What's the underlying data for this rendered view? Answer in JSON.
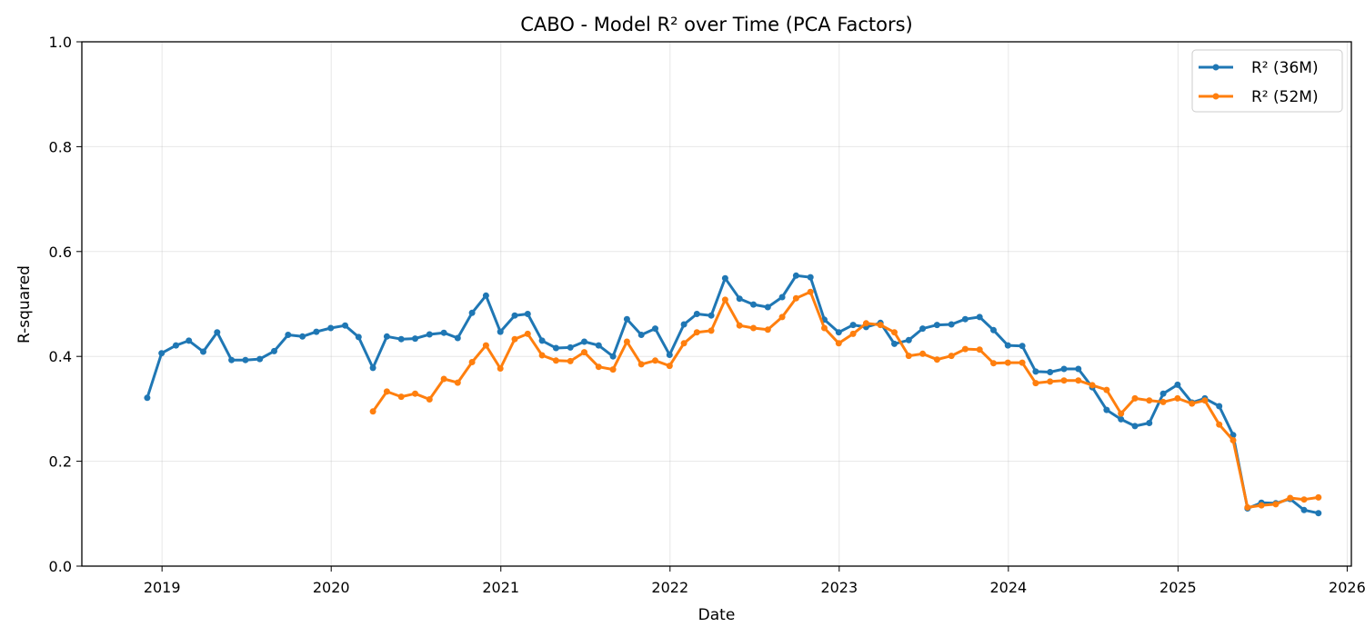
{
  "chart_data": {
    "type": "line",
    "title": "CABO - Model R² over Time (PCA Factors)",
    "xlabel": "Date",
    "ylabel": "R-squared",
    "xlim": [
      "2018-07-12",
      "2026-01-10"
    ],
    "ylim": [
      0,
      1.0
    ],
    "x_ticks": [
      "2019",
      "2020",
      "2021",
      "2022",
      "2023",
      "2024",
      "2025",
      "2026"
    ],
    "y_ticks": [
      "0.0",
      "0.2",
      "0.4",
      "0.6",
      "0.8",
      "1.0"
    ],
    "grid": true,
    "legend_position": "top-right",
    "series": [
      {
        "name": "R² (36M)",
        "color": "#1f77b4",
        "points": [
          [
            "2018-11-30",
            0.321
          ],
          [
            "2018-12-31",
            0.406
          ],
          [
            "2019-01-31",
            0.421
          ],
          [
            "2019-02-28",
            0.43
          ],
          [
            "2019-03-31",
            0.409
          ],
          [
            "2019-04-30",
            0.446
          ],
          [
            "2019-05-31",
            0.393
          ],
          [
            "2019-06-30",
            0.393
          ],
          [
            "2019-07-31",
            0.395
          ],
          [
            "2019-08-31",
            0.41
          ],
          [
            "2019-09-30",
            0.441
          ],
          [
            "2019-10-31",
            0.438
          ],
          [
            "2019-11-30",
            0.447
          ],
          [
            "2019-12-31",
            0.454
          ],
          [
            "2020-01-31",
            0.459
          ],
          [
            "2020-02-29",
            0.437
          ],
          [
            "2020-03-31",
            0.378
          ],
          [
            "2020-04-30",
            0.438
          ],
          [
            "2020-05-31",
            0.433
          ],
          [
            "2020-06-30",
            0.434
          ],
          [
            "2020-07-31",
            0.442
          ],
          [
            "2020-08-31",
            0.445
          ],
          [
            "2020-09-30",
            0.435
          ],
          [
            "2020-10-31",
            0.483
          ],
          [
            "2020-11-30",
            0.516
          ],
          [
            "2020-12-31",
            0.447
          ],
          [
            "2021-01-31",
            0.478
          ],
          [
            "2021-02-28",
            0.481
          ],
          [
            "2021-03-31",
            0.43
          ],
          [
            "2021-04-30",
            0.416
          ],
          [
            "2021-05-31",
            0.417
          ],
          [
            "2021-06-30",
            0.428
          ],
          [
            "2021-07-31",
            0.421
          ],
          [
            "2021-08-31",
            0.4
          ],
          [
            "2021-09-30",
            0.471
          ],
          [
            "2021-10-31",
            0.441
          ],
          [
            "2021-11-30",
            0.453
          ],
          [
            "2021-12-31",
            0.403
          ],
          [
            "2022-01-31",
            0.461
          ],
          [
            "2022-02-28",
            0.481
          ],
          [
            "2022-03-31",
            0.478
          ],
          [
            "2022-04-30",
            0.549
          ],
          [
            "2022-05-31",
            0.51
          ],
          [
            "2022-06-30",
            0.499
          ],
          [
            "2022-07-31",
            0.494
          ],
          [
            "2022-08-31",
            0.513
          ],
          [
            "2022-09-30",
            0.554
          ],
          [
            "2022-10-31",
            0.551
          ],
          [
            "2022-11-30",
            0.47
          ],
          [
            "2022-12-31",
            0.446
          ],
          [
            "2023-01-31",
            0.46
          ],
          [
            "2023-02-28",
            0.456
          ],
          [
            "2023-03-31",
            0.464
          ],
          [
            "2023-04-30",
            0.424
          ],
          [
            "2023-05-31",
            0.431
          ],
          [
            "2023-06-30",
            0.453
          ],
          [
            "2023-07-31",
            0.46
          ],
          [
            "2023-08-31",
            0.461
          ],
          [
            "2023-09-30",
            0.471
          ],
          [
            "2023-10-31",
            0.475
          ],
          [
            "2023-11-30",
            0.45
          ],
          [
            "2023-12-31",
            0.421
          ],
          [
            "2024-01-31",
            0.42
          ],
          [
            "2024-02-29",
            0.371
          ],
          [
            "2024-03-31",
            0.37
          ],
          [
            "2024-04-30",
            0.376
          ],
          [
            "2024-05-31",
            0.376
          ],
          [
            "2024-06-30",
            0.341
          ],
          [
            "2024-07-31",
            0.298
          ],
          [
            "2024-08-31",
            0.28
          ],
          [
            "2024-09-30",
            0.267
          ],
          [
            "2024-10-31",
            0.273
          ],
          [
            "2024-11-30",
            0.329
          ],
          [
            "2024-12-31",
            0.346
          ],
          [
            "2025-01-31",
            0.312
          ],
          [
            "2025-02-28",
            0.32
          ],
          [
            "2025-03-31",
            0.305
          ],
          [
            "2025-04-30",
            0.25
          ],
          [
            "2025-05-31",
            0.11
          ],
          [
            "2025-06-30",
            0.121
          ],
          [
            "2025-07-31",
            0.12
          ],
          [
            "2025-08-31",
            0.128
          ],
          [
            "2025-09-30",
            0.107
          ],
          [
            "2025-10-31",
            0.101
          ]
        ]
      },
      {
        "name": "R² (52M)",
        "color": "#ff7f0e",
        "points": [
          [
            "2020-03-31",
            0.295
          ],
          [
            "2020-04-30",
            0.333
          ],
          [
            "2020-05-31",
            0.323
          ],
          [
            "2020-06-30",
            0.329
          ],
          [
            "2020-07-31",
            0.318
          ],
          [
            "2020-08-31",
            0.357
          ],
          [
            "2020-09-30",
            0.35
          ],
          [
            "2020-10-31",
            0.389
          ],
          [
            "2020-11-30",
            0.421
          ],
          [
            "2020-12-31",
            0.377
          ],
          [
            "2021-01-31",
            0.433
          ],
          [
            "2021-02-28",
            0.443
          ],
          [
            "2021-03-31",
            0.402
          ],
          [
            "2021-04-30",
            0.392
          ],
          [
            "2021-05-31",
            0.391
          ],
          [
            "2021-06-30",
            0.408
          ],
          [
            "2021-07-31",
            0.38
          ],
          [
            "2021-08-31",
            0.375
          ],
          [
            "2021-09-30",
            0.428
          ],
          [
            "2021-10-31",
            0.385
          ],
          [
            "2021-11-30",
            0.392
          ],
          [
            "2021-12-31",
            0.382
          ],
          [
            "2022-01-31",
            0.425
          ],
          [
            "2022-02-28",
            0.446
          ],
          [
            "2022-03-31",
            0.449
          ],
          [
            "2022-04-30",
            0.508
          ],
          [
            "2022-05-31",
            0.459
          ],
          [
            "2022-06-30",
            0.454
          ],
          [
            "2022-07-31",
            0.451
          ],
          [
            "2022-08-31",
            0.475
          ],
          [
            "2022-09-30",
            0.511
          ],
          [
            "2022-10-31",
            0.523
          ],
          [
            "2022-11-30",
            0.454
          ],
          [
            "2022-12-31",
            0.425
          ],
          [
            "2023-01-31",
            0.443
          ],
          [
            "2023-02-28",
            0.463
          ],
          [
            "2023-03-31",
            0.46
          ],
          [
            "2023-04-30",
            0.446
          ],
          [
            "2023-05-31",
            0.401
          ],
          [
            "2023-06-30",
            0.405
          ],
          [
            "2023-07-31",
            0.394
          ],
          [
            "2023-08-31",
            0.401
          ],
          [
            "2023-09-30",
            0.414
          ],
          [
            "2023-10-31",
            0.413
          ],
          [
            "2023-11-30",
            0.387
          ],
          [
            "2023-12-31",
            0.388
          ],
          [
            "2024-01-31",
            0.388
          ],
          [
            "2024-02-29",
            0.349
          ],
          [
            "2024-03-31",
            0.352
          ],
          [
            "2024-04-30",
            0.354
          ],
          [
            "2024-05-31",
            0.354
          ],
          [
            "2024-06-30",
            0.345
          ],
          [
            "2024-07-31",
            0.336
          ],
          [
            "2024-08-31",
            0.291
          ],
          [
            "2024-09-30",
            0.32
          ],
          [
            "2024-10-31",
            0.316
          ],
          [
            "2024-11-30",
            0.313
          ],
          [
            "2024-12-31",
            0.32
          ],
          [
            "2025-01-31",
            0.31
          ],
          [
            "2025-02-28",
            0.316
          ],
          [
            "2025-03-31",
            0.27
          ],
          [
            "2025-04-30",
            0.24
          ],
          [
            "2025-05-31",
            0.112
          ],
          [
            "2025-06-30",
            0.116
          ],
          [
            "2025-07-31",
            0.118
          ],
          [
            "2025-08-31",
            0.13
          ],
          [
            "2025-09-30",
            0.127
          ],
          [
            "2025-10-31",
            0.131
          ]
        ]
      }
    ]
  }
}
